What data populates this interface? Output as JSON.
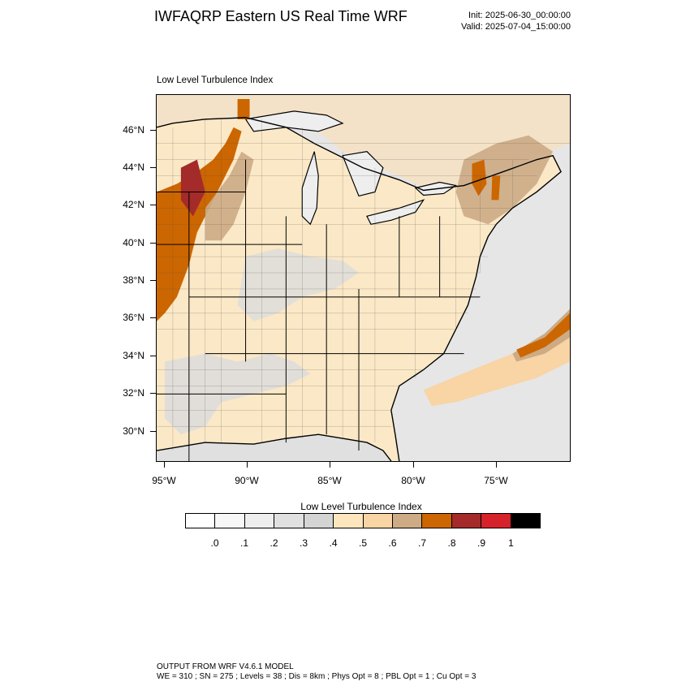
{
  "header": {
    "title": "IWFAQRP Eastern US Real Time WRF",
    "init": "Init: 2025-06-30_00:00:00",
    "valid": "Valid: 2025-07-04_15:00:00"
  },
  "map": {
    "title": "Low Level Turbulence Index",
    "lat_labels": [
      "46°N",
      "44°N",
      "42°N",
      "40°N",
      "38°N",
      "36°N",
      "34°N",
      "32°N",
      "30°N"
    ],
    "lon_labels": [
      "95°W",
      "90°W",
      "85°W",
      "80°W",
      "75°W"
    ],
    "field_colors": {
      "water": "#e6e6e6",
      "land_base": "#fbe8c6",
      "lakes": "#eeeeee"
    }
  },
  "colorbar": {
    "title": "Low Level Turbulence Index",
    "labels": [
      ".0",
      ".1",
      ".2",
      ".3",
      ".4",
      ".5",
      ".6",
      ".7",
      ".8",
      ".9",
      "1"
    ],
    "colors": [
      "#ffffff",
      "#f7f7f7",
      "#eeeeee",
      "#e0e0e0",
      "#d4d4d4",
      "#fde6be",
      "#f9d4a5",
      "#ccab85",
      "#cc6600",
      "#a52a2a",
      "#d6222a",
      "#000000"
    ]
  },
  "footer": {
    "line1": "OUTPUT FROM WRF V4.6.1 MODEL",
    "line2": "WE = 310 ; SN = 275 ; Levels = 38 ; Dis = 8km ; Phys Opt = 8 ; PBL Opt = 1 ; Cu Opt = 3"
  }
}
